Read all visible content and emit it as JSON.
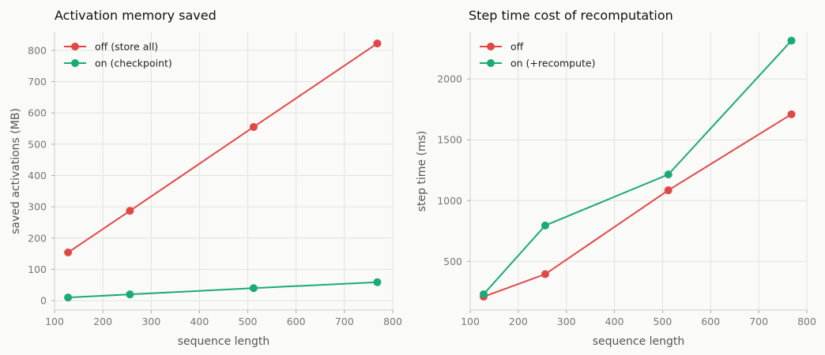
{
  "chart_data": [
    {
      "type": "line",
      "title": "Activation memory saved",
      "xlabel": "sequence length",
      "ylabel": "saved activations (MB)",
      "xlim": [
        100,
        800
      ],
      "ylim": [
        -30,
        860
      ],
      "xticks": [
        100,
        200,
        300,
        400,
        500,
        600,
        700,
        800
      ],
      "yticks": [
        0,
        100,
        200,
        300,
        400,
        500,
        600,
        700,
        800
      ],
      "grid": true,
      "legend_position": "top-left",
      "x": [
        128,
        256,
        512,
        768
      ],
      "series": [
        {
          "name": "off (store all)",
          "color": "#e04848",
          "values": [
            154,
            287,
            555,
            822
          ]
        },
        {
          "name": "on (checkpoint)",
          "color": "#1aaa78",
          "values": [
            10,
            20,
            40,
            59
          ]
        }
      ]
    },
    {
      "type": "line",
      "title": "Step time cost of recomputation",
      "xlabel": "sequence length",
      "ylabel": "step time (ms)",
      "xlim": [
        100,
        800
      ],
      "ylim": [
        100,
        2390
      ],
      "xticks": [
        100,
        200,
        300,
        400,
        500,
        600,
        700,
        800
      ],
      "yticks": [
        500,
        1000,
        1500,
        2000
      ],
      "grid": true,
      "legend_position": "top-left",
      "x": [
        128,
        256,
        512,
        768
      ],
      "series": [
        {
          "name": "off",
          "color": "#e04848",
          "values": [
            210,
            395,
            1085,
            1710
          ]
        },
        {
          "name": "on (+recompute)",
          "color": "#1aaa78",
          "values": [
            230,
            795,
            1215,
            2315
          ]
        }
      ]
    }
  ]
}
